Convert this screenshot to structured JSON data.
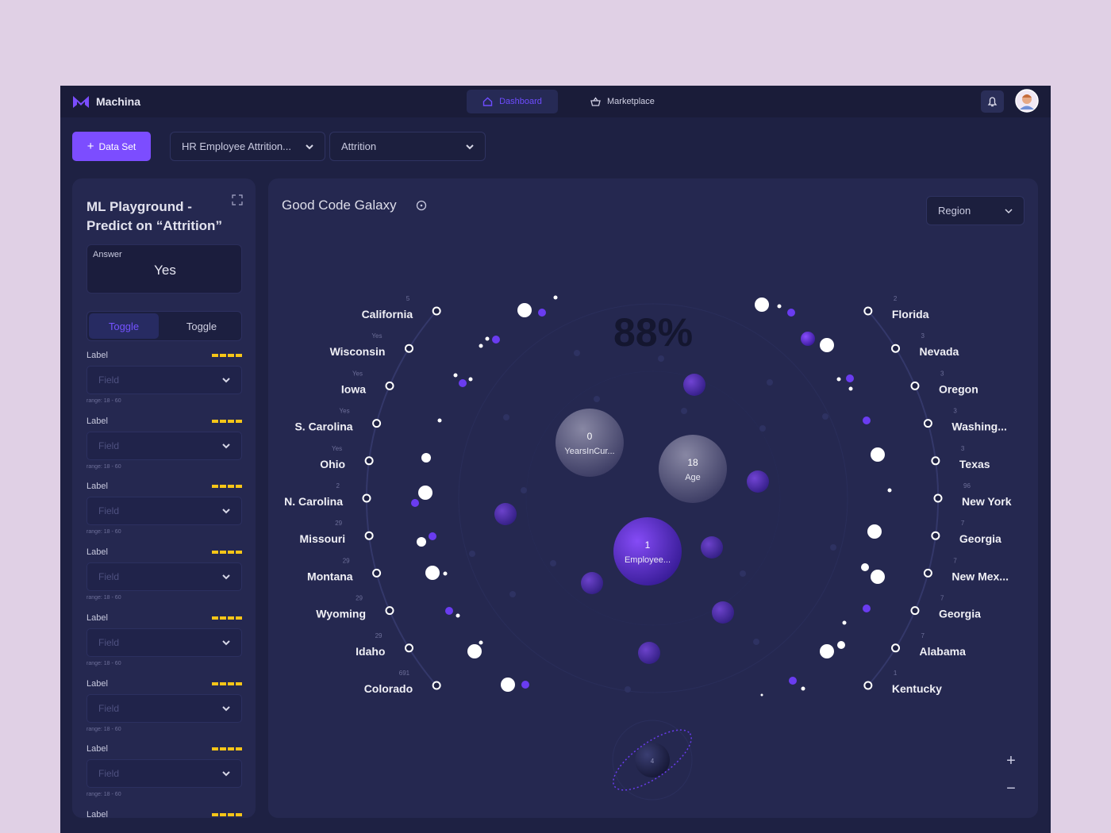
{
  "header": {
    "brand": "Machina",
    "nav": [
      "Dashboard",
      "Marketplace"
    ]
  },
  "toolbar": {
    "button": "Data Set",
    "dropdowns": [
      "HR Employee Attrition...",
      "Attrition"
    ]
  },
  "sidebar": {
    "title": "ML Playground - Predict on “Attrition”",
    "answer_label": "Answer",
    "answer": "Yes",
    "toggles": [
      "Toggle",
      "Toggle"
    ],
    "fields": [
      {
        "label": "Label",
        "field": "Field",
        "range": "range: 18 - 60"
      },
      {
        "label": "Label",
        "field": "Field",
        "range": "range: 18 - 60"
      },
      {
        "label": "Label",
        "field": "Field",
        "range": "range: 18 - 60"
      },
      {
        "label": "Label",
        "field": "Field",
        "range": "range: 18 - 60"
      },
      {
        "label": "Label",
        "field": "Field",
        "range": "range: 18 - 60"
      },
      {
        "label": "Label",
        "field": "Field",
        "range": "range: 18 - 60"
      },
      {
        "label": "Label",
        "field": "Field",
        "range": "range: 18 - 60"
      }
    ],
    "last_label": "Label"
  },
  "galaxy": {
    "title": "Good Code Galaxy",
    "filter": "Region",
    "center": "88%",
    "left": [
      {
        "value": "5",
        "name": "California"
      },
      {
        "value": "Yes",
        "name": "Wisconsin"
      },
      {
        "value": "Yes",
        "name": "Iowa"
      },
      {
        "value": "Yes",
        "name": "S. Carolina"
      },
      {
        "value": "Yes",
        "name": "Ohio"
      },
      {
        "value": "2",
        "name": "N. Carolina"
      },
      {
        "value": "29",
        "name": "Missouri"
      },
      {
        "value": "29",
        "name": "Montana"
      },
      {
        "value": "29",
        "name": "Wyoming"
      },
      {
        "value": "29",
        "name": "Idaho"
      },
      {
        "value": "691",
        "name": "Colorado"
      }
    ],
    "right": [
      {
        "value": "2",
        "name": "Florida"
      },
      {
        "value": "3",
        "name": "Nevada"
      },
      {
        "value": "3",
        "name": "Oregon"
      },
      {
        "value": "3",
        "name": "Washing..."
      },
      {
        "value": "3",
        "name": "Texas"
      },
      {
        "value": "96",
        "name": "New York"
      },
      {
        "value": "7",
        "name": "Georgia"
      },
      {
        "value": "7",
        "name": "New Mex..."
      },
      {
        "value": "7",
        "name": "Georgia"
      },
      {
        "value": "7",
        "name": "Alabama"
      },
      {
        "value": "1",
        "name": "Kentucky"
      }
    ],
    "bubbles": [
      {
        "value": "0",
        "label": "YearsInCur..."
      },
      {
        "value": "18",
        "label": "Age"
      },
      {
        "value": "1",
        "label": "Employee..."
      }
    ],
    "orbit": "4"
  }
}
